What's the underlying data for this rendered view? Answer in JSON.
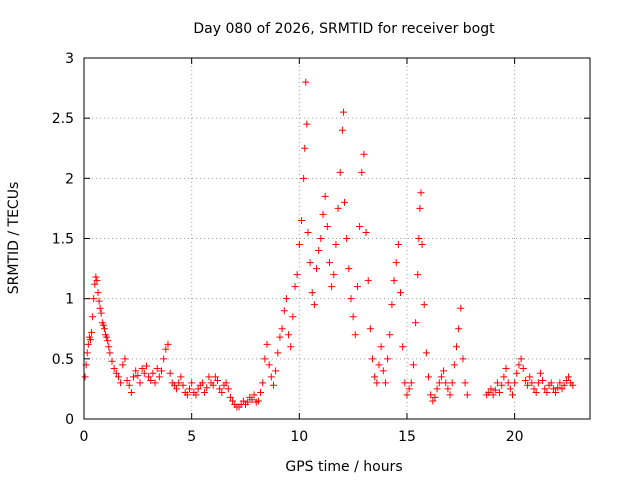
{
  "chart_data": {
    "type": "scatter",
    "title": "Day 080 of 2026, SRMTID for receiver bogt",
    "xlabel": "GPS time / hours",
    "ylabel": "SRMTID / TECUs",
    "xlim": [
      0,
      23.5
    ],
    "ylim": [
      0,
      3
    ],
    "xticks": [
      0,
      5,
      10,
      15,
      20
    ],
    "xtick_labels": [
      "0",
      "5",
      "10",
      "15",
      "20"
    ],
    "yticks": [
      0,
      0.5,
      1,
      1.5,
      2,
      2.5,
      3
    ],
    "ytick_labels": [
      "0",
      "0.5",
      "1",
      "1.5",
      "2",
      "2.5",
      "3"
    ],
    "grid": true,
    "marker": "+",
    "color": "#ff0000",
    "series": [
      {
        "name": "SRMTID",
        "points": [
          [
            0.05,
            0.35
          ],
          [
            0.1,
            0.45
          ],
          [
            0.15,
            0.55
          ],
          [
            0.2,
            0.62
          ],
          [
            0.25,
            0.68
          ],
          [
            0.3,
            0.66
          ],
          [
            0.35,
            0.72
          ],
          [
            0.4,
            0.85
          ],
          [
            0.45,
            1.0
          ],
          [
            0.5,
            1.12
          ],
          [
            0.55,
            1.18
          ],
          [
            0.6,
            1.15
          ],
          [
            0.65,
            1.05
          ],
          [
            0.7,
            0.98
          ],
          [
            0.75,
            0.92
          ],
          [
            0.8,
            0.88
          ],
          [
            0.85,
            0.8
          ],
          [
            0.9,
            0.78
          ],
          [
            0.95,
            0.75
          ],
          [
            1.0,
            0.7
          ],
          [
            1.05,
            0.68
          ],
          [
            1.1,
            0.65
          ],
          [
            1.15,
            0.6
          ],
          [
            1.2,
            0.55
          ],
          [
            1.3,
            0.48
          ],
          [
            1.4,
            0.42
          ],
          [
            1.5,
            0.38
          ],
          [
            1.6,
            0.35
          ],
          [
            1.7,
            0.3
          ],
          [
            1.8,
            0.45
          ],
          [
            1.9,
            0.5
          ],
          [
            2.0,
            0.32
          ],
          [
            2.1,
            0.28
          ],
          [
            2.2,
            0.22
          ],
          [
            2.3,
            0.35
          ],
          [
            2.4,
            0.4
          ],
          [
            2.5,
            0.36
          ],
          [
            2.6,
            0.3
          ],
          [
            2.7,
            0.42
          ],
          [
            2.8,
            0.38
          ],
          [
            2.9,
            0.44
          ],
          [
            3.0,
            0.35
          ],
          [
            3.1,
            0.32
          ],
          [
            3.2,
            0.38
          ],
          [
            3.3,
            0.3
          ],
          [
            3.4,
            0.42
          ],
          [
            3.5,
            0.35
          ],
          [
            3.6,
            0.4
          ],
          [
            3.7,
            0.5
          ],
          [
            3.8,
            0.58
          ],
          [
            3.9,
            0.62
          ],
          [
            4.0,
            0.38
          ],
          [
            4.1,
            0.3
          ],
          [
            4.2,
            0.28
          ],
          [
            4.3,
            0.25
          ],
          [
            4.4,
            0.3
          ],
          [
            4.5,
            0.35
          ],
          [
            4.6,
            0.28
          ],
          [
            4.7,
            0.22
          ],
          [
            4.8,
            0.2
          ],
          [
            4.9,
            0.25
          ],
          [
            5.0,
            0.3
          ],
          [
            5.1,
            0.22
          ],
          [
            5.2,
            0.2
          ],
          [
            5.3,
            0.25
          ],
          [
            5.4,
            0.28
          ],
          [
            5.5,
            0.3
          ],
          [
            5.6,
            0.22
          ],
          [
            5.7,
            0.26
          ],
          [
            5.8,
            0.35
          ],
          [
            5.9,
            0.3
          ],
          [
            6.0,
            0.28
          ],
          [
            6.1,
            0.35
          ],
          [
            6.2,
            0.32
          ],
          [
            6.3,
            0.25
          ],
          [
            6.4,
            0.22
          ],
          [
            6.5,
            0.28
          ],
          [
            6.6,
            0.3
          ],
          [
            6.7,
            0.25
          ],
          [
            6.8,
            0.18
          ],
          [
            6.9,
            0.15
          ],
          [
            7.0,
            0.12
          ],
          [
            7.1,
            0.1
          ],
          [
            7.2,
            0.1
          ],
          [
            7.3,
            0.12
          ],
          [
            7.4,
            0.15
          ],
          [
            7.5,
            0.12
          ],
          [
            7.6,
            0.14
          ],
          [
            7.7,
            0.18
          ],
          [
            7.8,
            0.16
          ],
          [
            7.9,
            0.2
          ],
          [
            8.0,
            0.14
          ],
          [
            8.1,
            0.15
          ],
          [
            8.2,
            0.22
          ],
          [
            8.3,
            0.3
          ],
          [
            8.4,
            0.5
          ],
          [
            8.5,
            0.62
          ],
          [
            8.6,
            0.45
          ],
          [
            8.7,
            0.35
          ],
          [
            8.8,
            0.28
          ],
          [
            8.9,
            0.4
          ],
          [
            9.0,
            0.55
          ],
          [
            9.1,
            0.68
          ],
          [
            9.2,
            0.75
          ],
          [
            9.3,
            0.9
          ],
          [
            9.4,
            1.0
          ],
          [
            9.5,
            0.7
          ],
          [
            9.6,
            0.6
          ],
          [
            9.7,
            0.85
          ],
          [
            9.8,
            1.1
          ],
          [
            9.9,
            1.2
          ],
          [
            10.0,
            1.45
          ],
          [
            10.1,
            1.65
          ],
          [
            10.2,
            2.0
          ],
          [
            10.25,
            2.25
          ],
          [
            10.3,
            2.8
          ],
          [
            10.35,
            2.45
          ],
          [
            10.4,
            1.55
          ],
          [
            10.5,
            1.3
          ],
          [
            10.6,
            1.05
          ],
          [
            10.7,
            0.95
          ],
          [
            10.8,
            1.25
          ],
          [
            10.9,
            1.4
          ],
          [
            11.0,
            1.5
          ],
          [
            11.1,
            1.7
          ],
          [
            11.2,
            1.85
          ],
          [
            11.3,
            1.6
          ],
          [
            11.4,
            1.3
          ],
          [
            11.5,
            1.1
          ],
          [
            11.6,
            1.2
          ],
          [
            11.7,
            1.45
          ],
          [
            11.8,
            1.75
          ],
          [
            11.9,
            2.05
          ],
          [
            12.0,
            2.4
          ],
          [
            12.05,
            2.55
          ],
          [
            12.1,
            1.8
          ],
          [
            12.2,
            1.5
          ],
          [
            12.3,
            1.25
          ],
          [
            12.4,
            1.0
          ],
          [
            12.5,
            0.85
          ],
          [
            12.6,
            0.7
          ],
          [
            12.7,
            1.1
          ],
          [
            12.8,
            1.6
          ],
          [
            12.9,
            2.05
          ],
          [
            13.0,
            2.2
          ],
          [
            13.1,
            1.55
          ],
          [
            13.2,
            1.15
          ],
          [
            13.3,
            0.75
          ],
          [
            13.4,
            0.5
          ],
          [
            13.5,
            0.35
          ],
          [
            13.6,
            0.3
          ],
          [
            13.7,
            0.45
          ],
          [
            13.8,
            0.6
          ],
          [
            13.9,
            0.4
          ],
          [
            14.0,
            0.3
          ],
          [
            14.1,
            0.5
          ],
          [
            14.2,
            0.7
          ],
          [
            14.3,
            0.95
          ],
          [
            14.4,
            1.15
          ],
          [
            14.5,
            1.3
          ],
          [
            14.6,
            1.45
          ],
          [
            14.7,
            1.05
          ],
          [
            14.8,
            0.6
          ],
          [
            14.9,
            0.3
          ],
          [
            15.0,
            0.2
          ],
          [
            15.1,
            0.25
          ],
          [
            15.2,
            0.3
          ],
          [
            15.3,
            0.45
          ],
          [
            15.4,
            0.8
          ],
          [
            15.5,
            1.2
          ],
          [
            15.55,
            1.5
          ],
          [
            15.6,
            1.75
          ],
          [
            15.65,
            1.88
          ],
          [
            15.7,
            1.45
          ],
          [
            15.8,
            0.95
          ],
          [
            15.9,
            0.55
          ],
          [
            16.0,
            0.35
          ],
          [
            16.1,
            0.2
          ],
          [
            16.2,
            0.15
          ],
          [
            16.3,
            0.18
          ],
          [
            16.4,
            0.25
          ],
          [
            16.5,
            0.3
          ],
          [
            16.6,
            0.35
          ],
          [
            16.7,
            0.4
          ],
          [
            16.8,
            0.3
          ],
          [
            16.9,
            0.25
          ],
          [
            17.0,
            0.2
          ],
          [
            17.1,
            0.3
          ],
          [
            17.2,
            0.45
          ],
          [
            17.3,
            0.6
          ],
          [
            17.4,
            0.75
          ],
          [
            17.5,
            0.92
          ],
          [
            17.6,
            0.5
          ],
          [
            17.7,
            0.3
          ],
          [
            17.8,
            0.2
          ],
          [
            18.7,
            0.2
          ],
          [
            18.8,
            0.22
          ],
          [
            18.9,
            0.25
          ],
          [
            19.0,
            0.2
          ],
          [
            19.1,
            0.24
          ],
          [
            19.2,
            0.3
          ],
          [
            19.3,
            0.22
          ],
          [
            19.4,
            0.28
          ],
          [
            19.5,
            0.35
          ],
          [
            19.6,
            0.42
          ],
          [
            19.7,
            0.3
          ],
          [
            19.8,
            0.25
          ],
          [
            19.9,
            0.2
          ],
          [
            20.0,
            0.3
          ],
          [
            20.1,
            0.38
          ],
          [
            20.2,
            0.45
          ],
          [
            20.3,
            0.5
          ],
          [
            20.4,
            0.42
          ],
          [
            20.5,
            0.32
          ],
          [
            20.6,
            0.28
          ],
          [
            20.7,
            0.35
          ],
          [
            20.8,
            0.3
          ],
          [
            20.9,
            0.25
          ],
          [
            21.0,
            0.22
          ],
          [
            21.1,
            0.3
          ],
          [
            21.2,
            0.38
          ],
          [
            21.3,
            0.32
          ],
          [
            21.4,
            0.25
          ],
          [
            21.5,
            0.22
          ],
          [
            21.6,
            0.28
          ],
          [
            21.7,
            0.3
          ],
          [
            21.8,
            0.25
          ],
          [
            21.9,
            0.22
          ],
          [
            22.0,
            0.26
          ],
          [
            22.1,
            0.3
          ],
          [
            22.2,
            0.25
          ],
          [
            22.3,
            0.28
          ],
          [
            22.4,
            0.32
          ],
          [
            22.5,
            0.35
          ],
          [
            22.6,
            0.3
          ],
          [
            22.7,
            0.28
          ]
        ]
      }
    ]
  }
}
